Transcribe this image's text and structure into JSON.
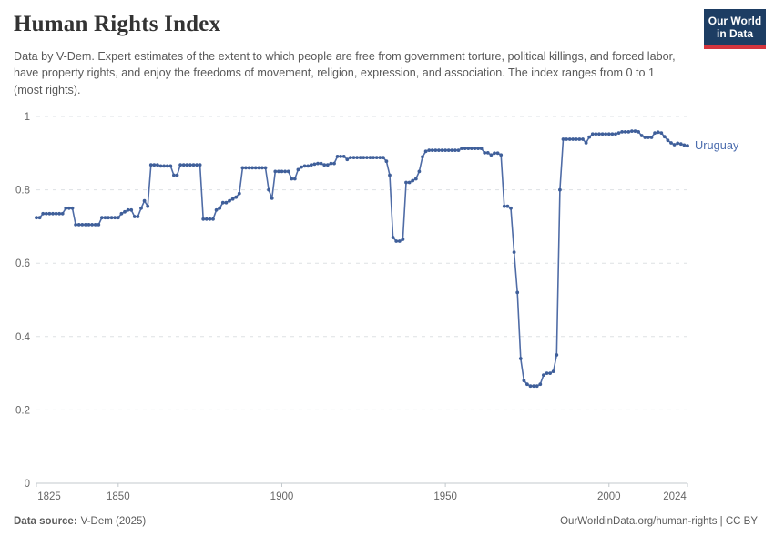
{
  "header": {
    "title": "Human Rights Index",
    "subtitle": "Data by V-Dem. Expert estimates of the extent to which people are free from government torture, political killings, and forced labor, have property rights, and enjoy the freedoms of movement, religion, expression, and association. The index ranges from 0 to 1 (most rights).",
    "logo_line1": "Our World",
    "logo_line2": "in Data"
  },
  "footer": {
    "source_label": "Data source:",
    "source_value": "V-Dem (2025)",
    "attribution": "OurWorldinData.org/human-rights | CC BY"
  },
  "colors": {
    "line": "#4f6ca6",
    "point": "#3f5f9a",
    "end_label": "#4c6dae",
    "gridline": "#dde1e4",
    "axis": "#c3c9cd",
    "tick_text": "#666666",
    "logo_bg": "#1d3d63",
    "logo_red": "#d4353e"
  },
  "chart_data": {
    "type": "line",
    "title": "Human Rights Index",
    "xlabel": "",
    "ylabel": "",
    "xlim": [
      1825,
      2024
    ],
    "ylim": [
      0,
      1
    ],
    "x_ticks": [
      1825,
      1850,
      1900,
      1950,
      2000,
      2024
    ],
    "y_ticks": [
      0,
      0.2,
      0.4,
      0.6,
      0.8,
      1
    ],
    "grid": "horizontal-dashed",
    "legend_position": "end-of-line",
    "series": [
      {
        "name": "Uruguay",
        "years": [
          1825,
          1826,
          1827,
          1828,
          1829,
          1830,
          1831,
          1832,
          1833,
          1834,
          1835,
          1836,
          1837,
          1838,
          1839,
          1840,
          1841,
          1842,
          1843,
          1844,
          1845,
          1846,
          1847,
          1848,
          1849,
          1850,
          1851,
          1852,
          1853,
          1854,
          1855,
          1856,
          1857,
          1858,
          1859,
          1860,
          1861,
          1862,
          1863,
          1864,
          1865,
          1866,
          1867,
          1868,
          1869,
          1870,
          1871,
          1872,
          1873,
          1874,
          1875,
          1876,
          1877,
          1878,
          1879,
          1880,
          1881,
          1882,
          1883,
          1884,
          1885,
          1886,
          1887,
          1888,
          1889,
          1890,
          1891,
          1892,
          1893,
          1894,
          1895,
          1896,
          1897,
          1898,
          1899,
          1900,
          1901,
          1902,
          1903,
          1904,
          1905,
          1906,
          1907,
          1908,
          1909,
          1910,
          1911,
          1912,
          1913,
          1914,
          1915,
          1916,
          1917,
          1918,
          1919,
          1920,
          1921,
          1922,
          1923,
          1924,
          1925,
          1926,
          1927,
          1928,
          1929,
          1930,
          1931,
          1932,
          1933,
          1934,
          1935,
          1936,
          1937,
          1938,
          1939,
          1940,
          1941,
          1942,
          1943,
          1944,
          1945,
          1946,
          1947,
          1948,
          1949,
          1950,
          1951,
          1952,
          1953,
          1954,
          1955,
          1956,
          1957,
          1958,
          1959,
          1960,
          1961,
          1962,
          1963,
          1964,
          1965,
          1966,
          1967,
          1968,
          1969,
          1970,
          1971,
          1972,
          1973,
          1974,
          1975,
          1976,
          1977,
          1978,
          1979,
          1980,
          1981,
          1982,
          1983,
          1984,
          1985,
          1986,
          1987,
          1988,
          1989,
          1990,
          1991,
          1992,
          1993,
          1994,
          1995,
          1996,
          1997,
          1998,
          1999,
          2000,
          2001,
          2002,
          2003,
          2004,
          2005,
          2006,
          2007,
          2008,
          2009,
          2010,
          2011,
          2012,
          2013,
          2014,
          2015,
          2016,
          2017,
          2018,
          2019,
          2020,
          2021,
          2022,
          2023,
          2024
        ],
        "values": [
          0.724,
          0.724,
          0.735,
          0.735,
          0.735,
          0.735,
          0.735,
          0.735,
          0.735,
          0.75,
          0.75,
          0.75,
          0.705,
          0.705,
          0.705,
          0.705,
          0.705,
          0.705,
          0.705,
          0.705,
          0.724,
          0.724,
          0.724,
          0.724,
          0.724,
          0.724,
          0.735,
          0.74,
          0.745,
          0.745,
          0.727,
          0.727,
          0.75,
          0.77,
          0.755,
          0.868,
          0.868,
          0.868,
          0.865,
          0.865,
          0.865,
          0.865,
          0.84,
          0.84,
          0.868,
          0.868,
          0.868,
          0.868,
          0.868,
          0.868,
          0.868,
          0.72,
          0.72,
          0.72,
          0.72,
          0.745,
          0.75,
          0.765,
          0.765,
          0.77,
          0.775,
          0.78,
          0.79,
          0.86,
          0.86,
          0.86,
          0.86,
          0.86,
          0.86,
          0.86,
          0.86,
          0.8,
          0.777,
          0.85,
          0.85,
          0.85,
          0.85,
          0.85,
          0.83,
          0.83,
          0.855,
          0.862,
          0.865,
          0.865,
          0.868,
          0.87,
          0.872,
          0.872,
          0.868,
          0.868,
          0.872,
          0.872,
          0.891,
          0.891,
          0.891,
          0.883,
          0.888,
          0.888,
          0.888,
          0.888,
          0.888,
          0.888,
          0.888,
          0.888,
          0.888,
          0.888,
          0.888,
          0.878,
          0.84,
          0.67,
          0.66,
          0.66,
          0.665,
          0.82,
          0.82,
          0.825,
          0.83,
          0.85,
          0.89,
          0.905,
          0.908,
          0.908,
          0.908,
          0.908,
          0.908,
          0.908,
          0.908,
          0.908,
          0.908,
          0.908,
          0.913,
          0.913,
          0.913,
          0.913,
          0.913,
          0.913,
          0.913,
          0.901,
          0.901,
          0.895,
          0.9,
          0.9,
          0.895,
          0.755,
          0.755,
          0.75,
          0.63,
          0.52,
          0.34,
          0.28,
          0.27,
          0.265,
          0.265,
          0.265,
          0.27,
          0.295,
          0.3,
          0.3,
          0.305,
          0.35,
          0.8,
          0.938,
          0.938,
          0.938,
          0.938,
          0.938,
          0.938,
          0.938,
          0.928,
          0.944,
          0.952,
          0.952,
          0.952,
          0.952,
          0.952,
          0.952,
          0.952,
          0.952,
          0.955,
          0.958,
          0.958,
          0.958,
          0.96,
          0.96,
          0.958,
          0.948,
          0.943,
          0.943,
          0.943,
          0.955,
          0.957,
          0.955,
          0.945,
          0.935,
          0.928,
          0.923,
          0.927,
          0.925,
          0.922,
          0.92
        ]
      }
    ]
  }
}
